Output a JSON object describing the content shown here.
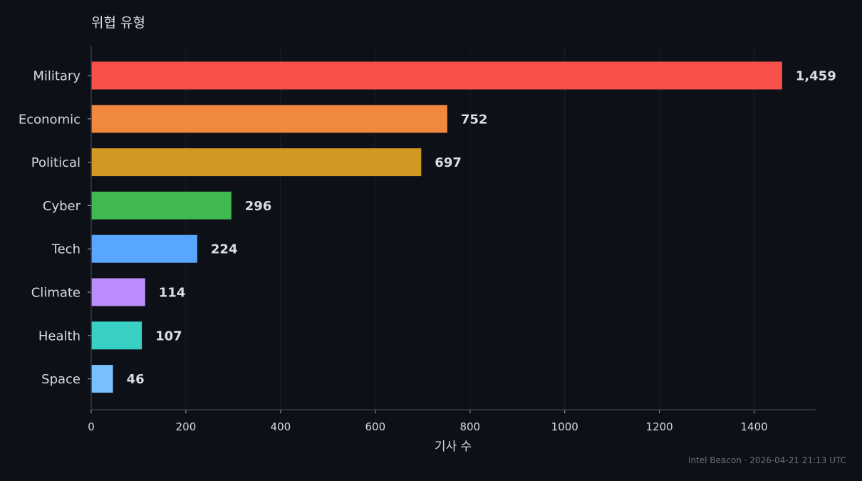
{
  "chart_data": {
    "type": "bar",
    "orientation": "horizontal",
    "title": "위협 유형",
    "xlabel": "기사 수",
    "ylabel": "",
    "categories": [
      "Military",
      "Economic",
      "Political",
      "Cyber",
      "Tech",
      "Climate",
      "Health",
      "Space"
    ],
    "values": [
      1459,
      752,
      697,
      296,
      224,
      114,
      107,
      46
    ],
    "value_labels": [
      "1,459",
      "752",
      "697",
      "296",
      "224",
      "114",
      "107",
      "46"
    ],
    "colors": [
      "#f8514b",
      "#f0883e",
      "#d29922",
      "#3fb950",
      "#58a6ff",
      "#bc8cff",
      "#39d0c4",
      "#79c0ff"
    ],
    "xlim": [
      0,
      1530
    ],
    "xticks": [
      0,
      200,
      400,
      600,
      800,
      1000,
      1200,
      1400
    ],
    "grid": true,
    "legend": "none"
  },
  "footer": {
    "source": "Intel Beacon · 2026-04-21 21:13 UTC"
  }
}
